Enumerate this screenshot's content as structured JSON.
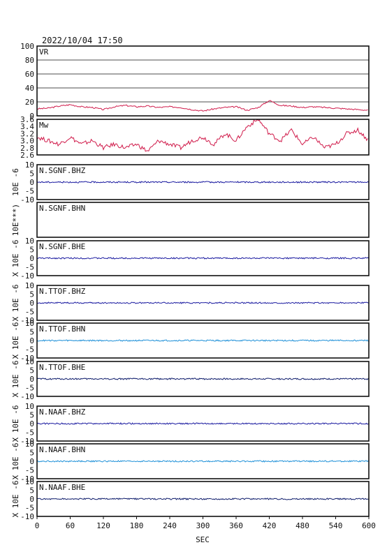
{
  "header": {
    "timestamp": "2022/10/04  17:50"
  },
  "x_axis": {
    "label": "SEC",
    "ticks": [
      "0",
      "60",
      "120",
      "180",
      "240",
      "300",
      "360",
      "420",
      "480",
      "540",
      "600"
    ]
  },
  "chart_data": [
    {
      "type": "line",
      "title": "VR",
      "ylim": [
        0,
        100
      ],
      "y_ticks": [
        "100",
        "80",
        "60",
        "40",
        "20",
        "0"
      ],
      "grid": true,
      "color": "#d01a4a",
      "x": [
        0,
        20,
        40,
        60,
        80,
        100,
        120,
        140,
        160,
        180,
        200,
        220,
        240,
        260,
        280,
        300,
        320,
        340,
        360,
        380,
        400,
        420,
        440,
        460,
        480,
        500,
        520,
        540,
        560,
        580,
        600
      ],
      "values": [
        10,
        11,
        14,
        16,
        13,
        12,
        9,
        13,
        15,
        13,
        14,
        12,
        13,
        12,
        9,
        7,
        10,
        12,
        13,
        8,
        12,
        22,
        15,
        14,
        12,
        13,
        12,
        11,
        10,
        9,
        8
      ]
    },
    {
      "type": "line",
      "title": "Mw",
      "ylim": [
        2.6,
        3.6
      ],
      "y_ticks": [
        "3.6",
        "3.4",
        "3.2",
        "3.0",
        "2.8",
        "2.6"
      ],
      "grid": false,
      "color": "#d01a4a",
      "x": [
        0,
        20,
        40,
        60,
        80,
        100,
        120,
        140,
        160,
        180,
        200,
        220,
        240,
        260,
        280,
        300,
        320,
        340,
        360,
        380,
        400,
        420,
        440,
        460,
        480,
        500,
        520,
        540,
        560,
        580,
        600
      ],
      "values": [
        3.1,
        3.0,
        2.9,
        3.1,
        2.9,
        3.0,
        2.8,
        2.9,
        2.8,
        2.9,
        2.7,
        3.0,
        2.9,
        2.8,
        3.0,
        3.1,
        2.9,
        3.2,
        3.0,
        3.4,
        3.6,
        3.2,
        3.0,
        3.3,
        2.9,
        3.1,
        2.8,
        2.9,
        3.2,
        3.3,
        3.0
      ]
    },
    {
      "type": "line",
      "title": "N.SGNF.BHZ",
      "ylim": [
        -10,
        10
      ],
      "y_ticks": [
        "10",
        "5",
        "0",
        "-5",
        "-10"
      ],
      "ylabel": "10E -6",
      "color": "#1a1aa0"
    },
    {
      "type": "line",
      "title": "N.SGNF.BHN",
      "ylim": [
        -10,
        10
      ],
      "y_ticks": [],
      "ylabel": "10E***)",
      "color": "#1a1aa0",
      "empty": true
    },
    {
      "type": "line",
      "title": "N.SGNF.BHE",
      "ylim": [
        -10,
        10
      ],
      "y_ticks": [
        "10",
        "5",
        "0",
        "-5",
        "-10"
      ],
      "ylabel": "X 10E -6",
      "color": "#1a1aa0"
    },
    {
      "type": "line",
      "title": "N.TTOF.BHZ",
      "ylim": [
        -10,
        10
      ],
      "y_ticks": [
        "10",
        "5",
        "0",
        "-5",
        "-10"
      ],
      "ylabel": "X 10E -6",
      "color": "#1a1aa0"
    },
    {
      "type": "line",
      "title": "N.TTOF.BHN",
      "ylim": [
        -10,
        10
      ],
      "y_ticks": [
        "10",
        "5",
        "0",
        "-5",
        "-10"
      ],
      "ylabel": "X 10E -6",
      "color": "#1e90d8"
    },
    {
      "type": "line",
      "title": "N.TTOF.BHE",
      "ylim": [
        -10,
        10
      ],
      "y_ticks": [
        "10",
        "5",
        "0",
        "-5",
        "-10"
      ],
      "ylabel": "X 10E -6",
      "color": "#0c1a6a"
    },
    {
      "type": "line",
      "title": "N.NAAF.BHZ",
      "ylim": [
        -10,
        10
      ],
      "y_ticks": [
        "10",
        "5",
        "0",
        "-5",
        "-10"
      ],
      "ylabel": "X 10E -6",
      "color": "#1a1aa0"
    },
    {
      "type": "line",
      "title": "N.NAAF.BHN",
      "ylim": [
        -10,
        10
      ],
      "y_ticks": [
        "10",
        "5",
        "0",
        "-5",
        "-10"
      ],
      "ylabel": "X 10E -6",
      "color": "#1e90d8"
    },
    {
      "type": "line",
      "title": "N.NAAF.BHE",
      "ylim": [
        -10,
        10
      ],
      "y_ticks": [
        "10",
        "5",
        "0",
        "-5",
        "-10"
      ],
      "ylabel": "X 10E -6",
      "color": "#0c1a6a"
    }
  ]
}
